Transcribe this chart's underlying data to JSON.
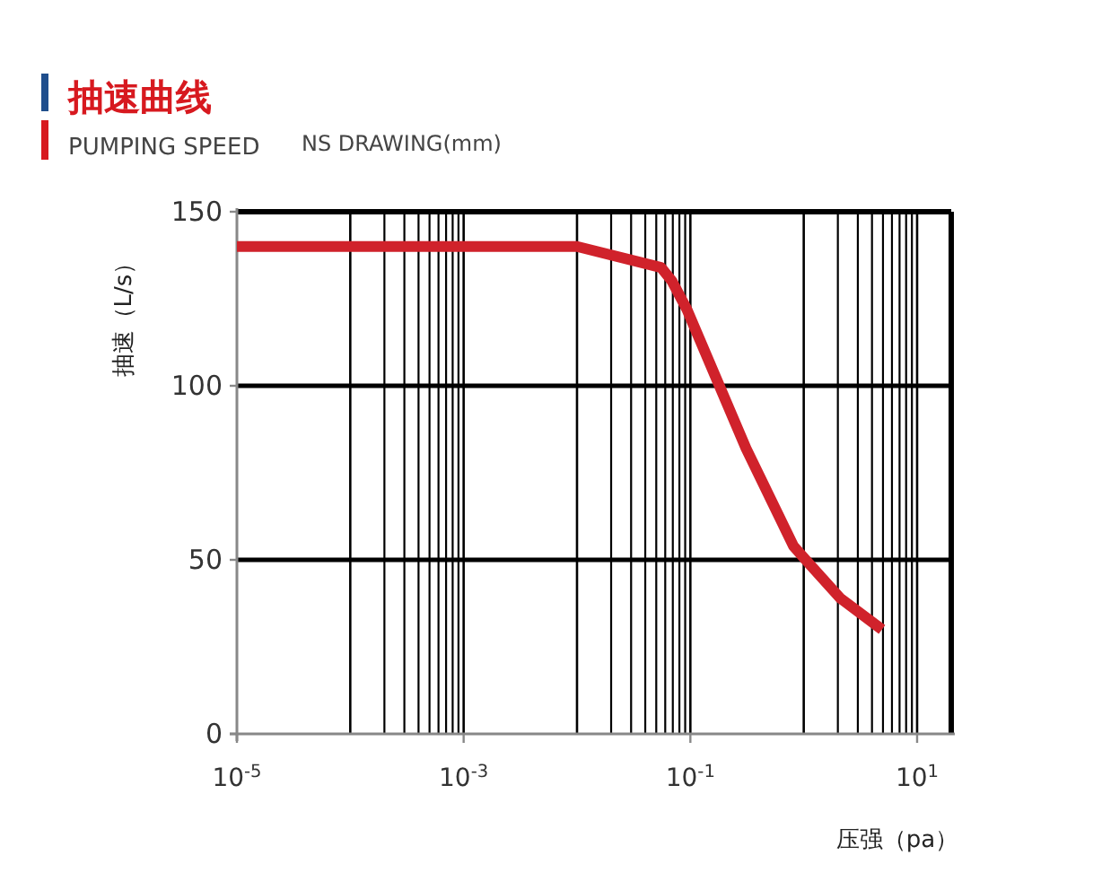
{
  "chart_data": {
    "type": "line",
    "title": "抽速曲线",
    "subtitle": "PUMPING SPEED",
    "annotations": [
      "NS DRAWING(mm)"
    ],
    "xlabel": "压强（pa）",
    "ylabel": "抽速（L/s）",
    "log": "x",
    "grid": true,
    "x": [
      1e-05,
      0.01,
      0.055,
      0.069,
      0.093,
      0.31,
      0.81,
      1.04,
      2.1,
      4.9
    ],
    "series": [
      {
        "color": "#d0222b",
        "values": [
          140,
          140,
          134,
          130,
          122,
          82,
          54,
          50,
          39,
          30
        ]
      }
    ],
    "xlim": [
      1e-05,
      20
    ],
    "ylim": [
      0,
      150
    ],
    "xticks": [
      {
        "value": 1e-05,
        "label": "10$^{-5}$"
      },
      {
        "value": 0.001,
        "label": "10$^{-3}$"
      },
      {
        "value": 0.1,
        "label": "10$^{-1}$"
      },
      {
        "value": 10,
        "label": "10$^{1}$"
      }
    ],
    "yticks": [
      0,
      50,
      100,
      150
    ]
  }
}
